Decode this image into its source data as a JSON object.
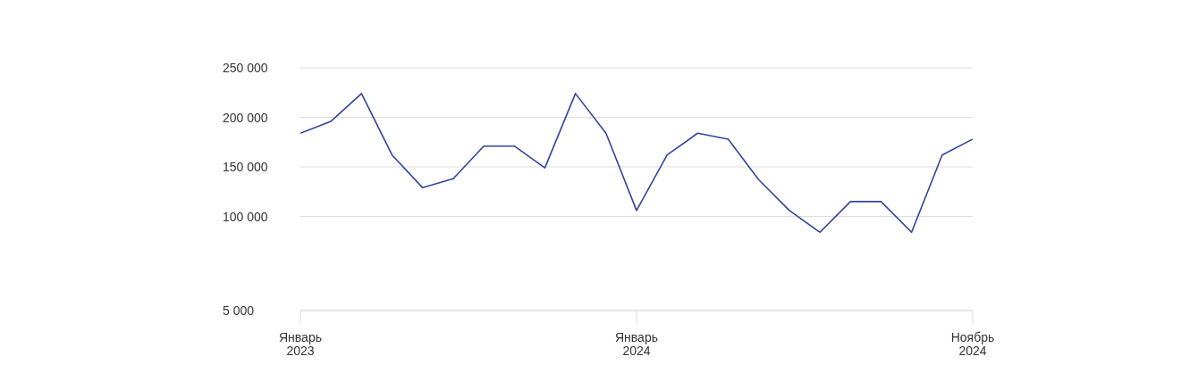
{
  "chart_data": {
    "type": "line",
    "categories": [
      "Январь 2023",
      null,
      null,
      null,
      null,
      null,
      null,
      null,
      null,
      null,
      null,
      "Январь 2024",
      null,
      null,
      null,
      null,
      null,
      null,
      null,
      null,
      null,
      null,
      "Ноябрь 2024"
    ],
    "values": [
      184000,
      196000,
      224000,
      162000,
      129000,
      138000,
      171000,
      171000,
      149000,
      224000,
      184000,
      106000,
      162000,
      184000,
      178000,
      137000,
      106000,
      84000,
      115000,
      115000,
      84000,
      162000,
      178000
    ],
    "color": "#34449b",
    "ylim": [
      5000,
      250000
    ],
    "yticks": [
      {
        "value": 5000,
        "label": "5 000"
      },
      {
        "value": 100000,
        "label": "100 000"
      },
      {
        "value": 150000,
        "label": "150 000"
      },
      {
        "value": 200000,
        "label": "200 000"
      },
      {
        "value": 250000,
        "label": "250 000"
      }
    ],
    "grid": "y"
  }
}
